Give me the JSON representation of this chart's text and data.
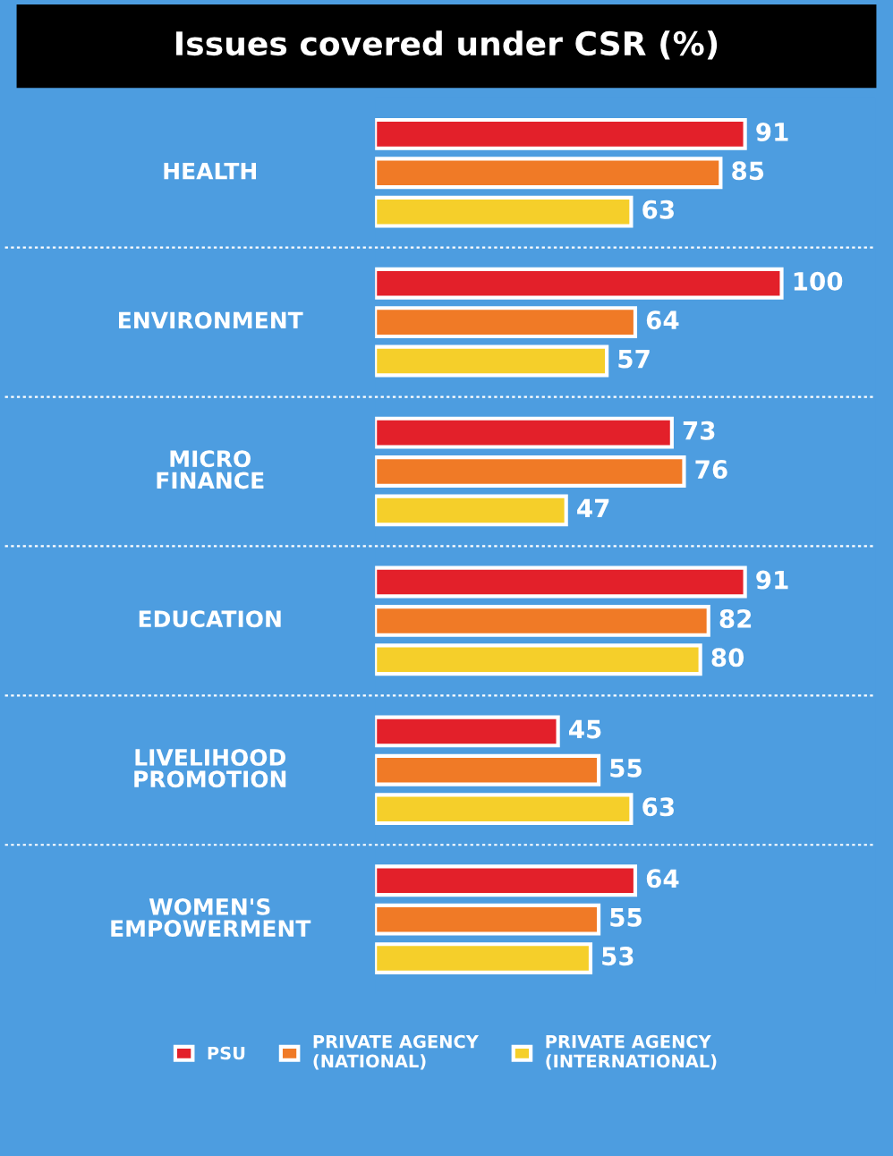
{
  "chart_data": {
    "type": "bar",
    "orientation": "horizontal",
    "title": "Issues covered under CSR (%)",
    "categories": [
      "HEALTH",
      "ENVIRONMENT",
      "MICRO\nFINANCE",
      "EDUCATION",
      "LIVELIHOOD\nPROMOTION",
      "WOMEN'S\nEMPOWERMENT"
    ],
    "series": [
      {
        "name": "PSU",
        "color": "#e3202a",
        "values": [
          91,
          100,
          73,
          91,
          45,
          64
        ]
      },
      {
        "name": "PRIVATE AGENCY\n(NATIONAL)",
        "color": "#f07a26",
        "values": [
          85,
          64,
          76,
          82,
          55,
          55
        ]
      },
      {
        "name": "PRIVATE AGENCY\n(INTERNATIONAL)",
        "color": "#f5cf2a",
        "values": [
          63,
          57,
          47,
          80,
          63,
          53
        ]
      }
    ],
    "data_labels": true,
    "legend": "bottom"
  }
}
